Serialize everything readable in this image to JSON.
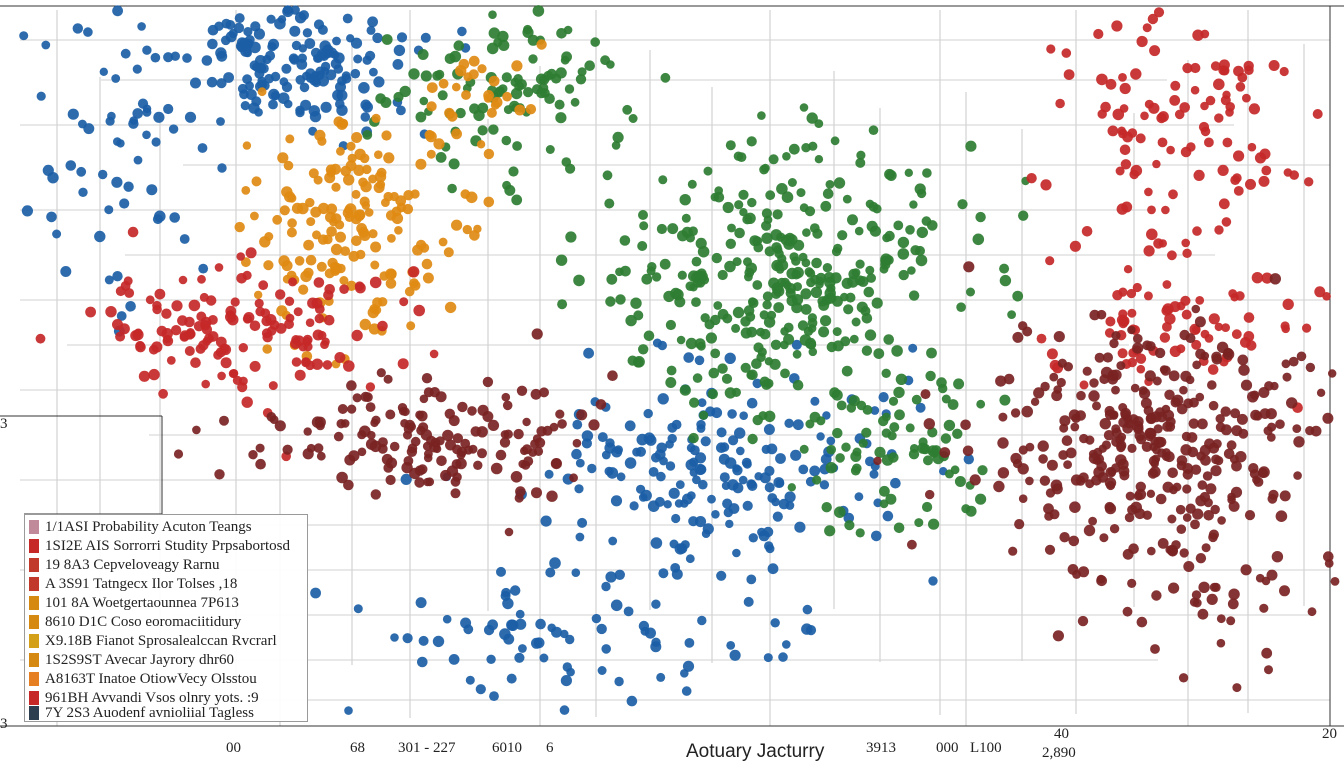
{
  "chart_data": {
    "type": "scatter",
    "title": "",
    "xlabel": "Aotuary Jacturry",
    "ylabel": "",
    "grid": true,
    "x_tick_labels": [
      "00",
      "68",
      "301 - 227",
      "6010",
      "6",
      "3913",
      "000",
      "L100",
      "40",
      "2,890",
      "20"
    ],
    "y_tick_labels": [
      "3",
      "3"
    ],
    "legend_position": "bottom-left",
    "legend": [
      {
        "label": "1/1ASI Probability Acuton Teangs",
        "color": "#c08a9a"
      },
      {
        "label": "1SI2E AIS Sorrorri Studity Prpsabortosd",
        "color": "#c62828"
      },
      {
        "label": "19 8A3 Cepveloveagy Rarnu",
        "color": "#c0392b"
      },
      {
        "label": "A 3S91 Tatngecx Ilor Tolses ,18",
        "color": "#c0392b"
      },
      {
        "label": "101 8A Woetgertaounnea 7P613",
        "color": "#d68910"
      },
      {
        "label": "8610 D1C Coso eoromaciitidury",
        "color": "#d68910"
      },
      {
        "label": "X9.18B Fianot Sprosalealccan Rvcrarl",
        "color": "#d4a017"
      },
      {
        "label": "1S2S9ST Avecar Jayrory dhr60",
        "color": "#d68910"
      },
      {
        "label": "A8163T Inatoe OtiowVecy Olsstou",
        "color": "#e67e22"
      },
      {
        "label": "961BH Avvandi Vsos olnry yots. :9",
        "color": "#c62828"
      },
      {
        "label": "7Y 2S3 Auodenf avnioliial Tagless",
        "color": "#2c3e50"
      }
    ],
    "series": [
      {
        "color": "#1b5ea6",
        "clusters": [
          {
            "x": 290,
            "y": 60,
            "sx": 110,
            "sy": 55,
            "n": 170
          },
          {
            "x": 720,
            "y": 470,
            "sx": 150,
            "sy": 90,
            "n": 200
          },
          {
            "x": 560,
            "y": 640,
            "sx": 200,
            "sy": 70,
            "n": 90
          },
          {
            "x": 120,
            "y": 150,
            "sx": 90,
            "sy": 120,
            "n": 60
          }
        ]
      },
      {
        "color": "#2e7d32",
        "clusters": [
          {
            "x": 780,
            "y": 280,
            "sx": 150,
            "sy": 110,
            "n": 340
          },
          {
            "x": 520,
            "y": 90,
            "sx": 110,
            "sy": 80,
            "n": 110
          },
          {
            "x": 880,
            "y": 450,
            "sx": 90,
            "sy": 70,
            "n": 80
          }
        ]
      },
      {
        "color": "#e08a12",
        "clusters": [
          {
            "x": 350,
            "y": 230,
            "sx": 90,
            "sy": 90,
            "n": 170
          },
          {
            "x": 470,
            "y": 110,
            "sx": 60,
            "sy": 50,
            "n": 30
          }
        ]
      },
      {
        "color": "#c62828",
        "clusters": [
          {
            "x": 1190,
            "y": 130,
            "sx": 110,
            "sy": 110,
            "n": 120
          },
          {
            "x": 230,
            "y": 330,
            "sx": 140,
            "sy": 60,
            "n": 150
          },
          {
            "x": 1180,
            "y": 330,
            "sx": 120,
            "sy": 50,
            "n": 70
          }
        ]
      },
      {
        "color": "#7a2323",
        "clusters": [
          {
            "x": 1150,
            "y": 440,
            "sx": 150,
            "sy": 95,
            "n": 330
          },
          {
            "x": 430,
            "y": 440,
            "sx": 140,
            "sy": 50,
            "n": 160
          },
          {
            "x": 1200,
            "y": 600,
            "sx": 120,
            "sy": 90,
            "n": 50
          }
        ]
      }
    ]
  }
}
